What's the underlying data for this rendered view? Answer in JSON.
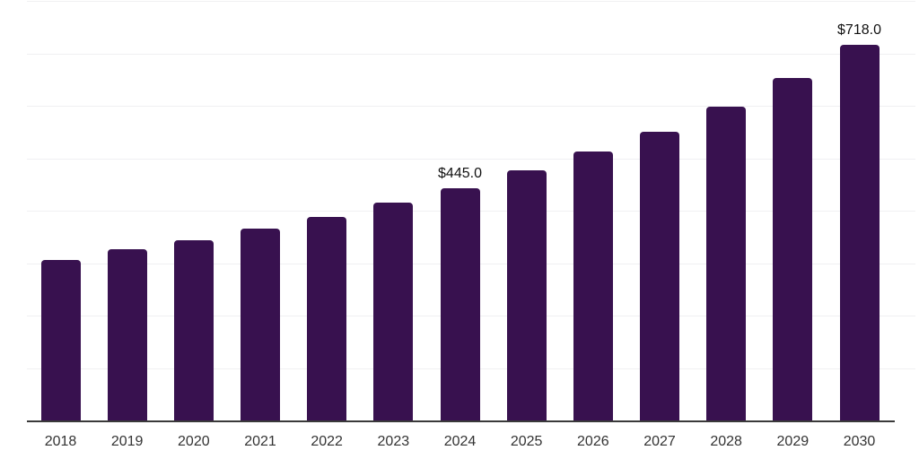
{
  "chart_data": {
    "type": "bar",
    "title": "",
    "xlabel": "",
    "ylabel": "",
    "categories": [
      "2018",
      "2019",
      "2020",
      "2021",
      "2022",
      "2023",
      "2024",
      "2025",
      "2026",
      "2027",
      "2028",
      "2029",
      "2030"
    ],
    "values": [
      308,
      329,
      346,
      368,
      390,
      417,
      445,
      478,
      515,
      553,
      600,
      654,
      718
    ],
    "labeled_points": [
      {
        "category": "2024",
        "index": 6,
        "label": "$445.0"
      },
      {
        "category": "2030",
        "index": 12,
        "label": "$718.0"
      }
    ],
    "ylim": [
      0,
      800
    ],
    "gridline_step": 100,
    "grid": true,
    "legend": "none",
    "colors": {
      "bar": "#38114F",
      "axis_line": "#3a3a3a",
      "gridline": "#f0f0f2",
      "tick_label": "#333333",
      "value_label": "#111111"
    }
  }
}
